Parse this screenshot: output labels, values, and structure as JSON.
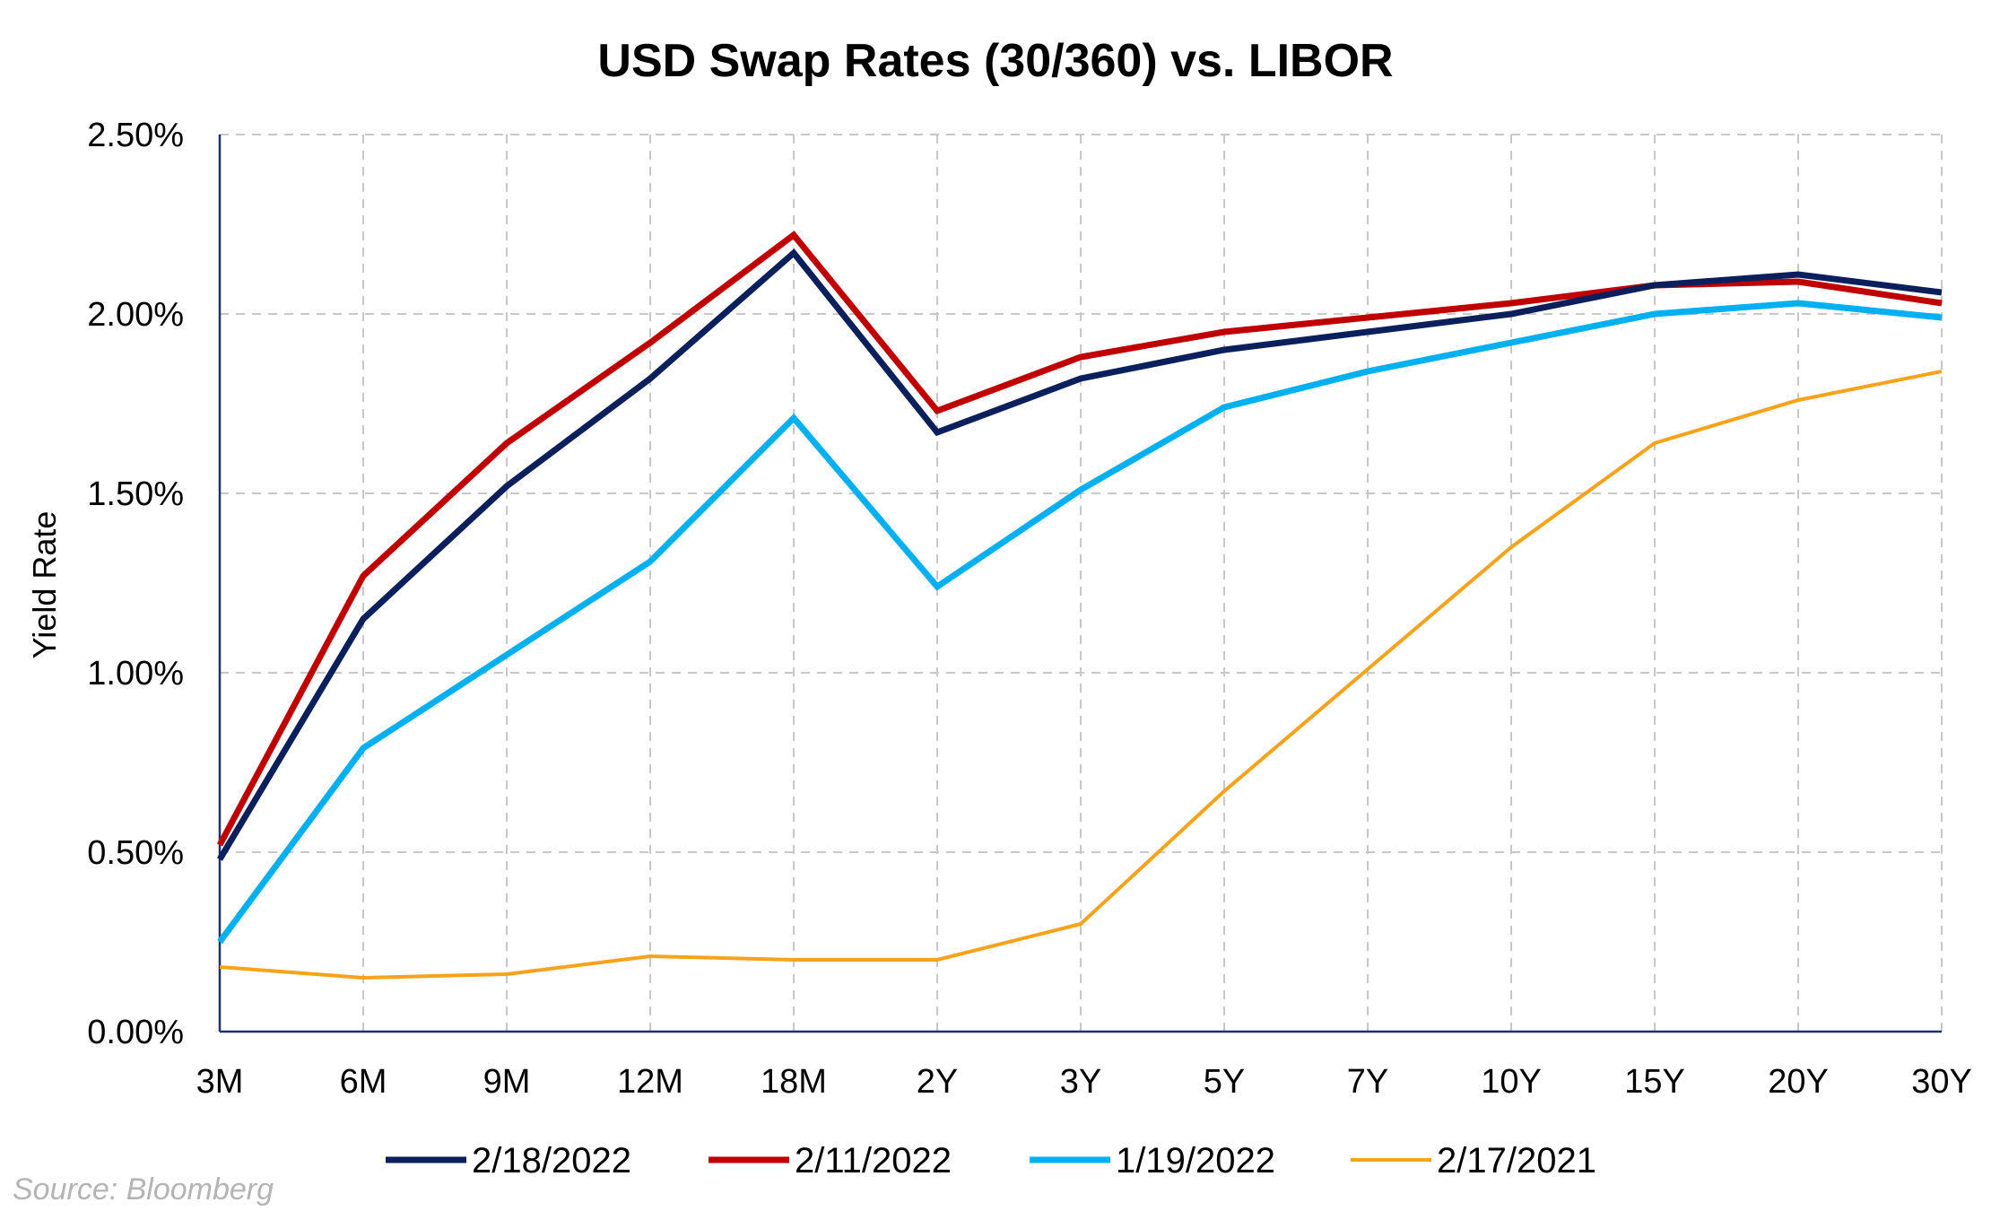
{
  "chart_data": {
    "type": "line",
    "title": "USD Swap Rates (30/360) vs. LIBOR",
    "xlabel": "",
    "ylabel": "Yield Rate",
    "source": "Source: Bloomberg",
    "categories": [
      "3M",
      "6M",
      "9M",
      "12M",
      "18M",
      "2Y",
      "3Y",
      "5Y",
      "7Y",
      "10Y",
      "15Y",
      "20Y",
      "30Y"
    ],
    "y_ticks": [
      "0.00%",
      "0.50%",
      "1.00%",
      "1.50%",
      "2.00%",
      "2.50%"
    ],
    "ylim": [
      0,
      2.5
    ],
    "grid": true,
    "legend_position": "bottom",
    "series": [
      {
        "name": "2/18/2022",
        "color": "#0b1f5c",
        "values": [
          0.48,
          1.15,
          1.52,
          1.82,
          2.17,
          1.67,
          1.82,
          1.9,
          1.95,
          2.0,
          2.08,
          2.11,
          2.06
        ]
      },
      {
        "name": "2/11/2022",
        "color": "#c00000",
        "values": [
          0.52,
          1.27,
          1.64,
          1.92,
          2.22,
          1.73,
          1.88,
          1.95,
          1.99,
          2.03,
          2.08,
          2.09,
          2.03
        ]
      },
      {
        "name": "1/19/2022",
        "color": "#00b0f0",
        "values": [
          0.25,
          0.79,
          1.05,
          1.31,
          1.71,
          1.24,
          1.51,
          1.74,
          1.84,
          1.92,
          2.0,
          2.03,
          1.99
        ]
      },
      {
        "name": "2/17/2021",
        "color": "#f7a21b",
        "values": [
          0.18,
          0.15,
          0.16,
          0.21,
          0.2,
          0.2,
          0.3,
          0.67,
          1.01,
          1.35,
          1.64,
          1.76,
          1.84
        ]
      }
    ]
  }
}
